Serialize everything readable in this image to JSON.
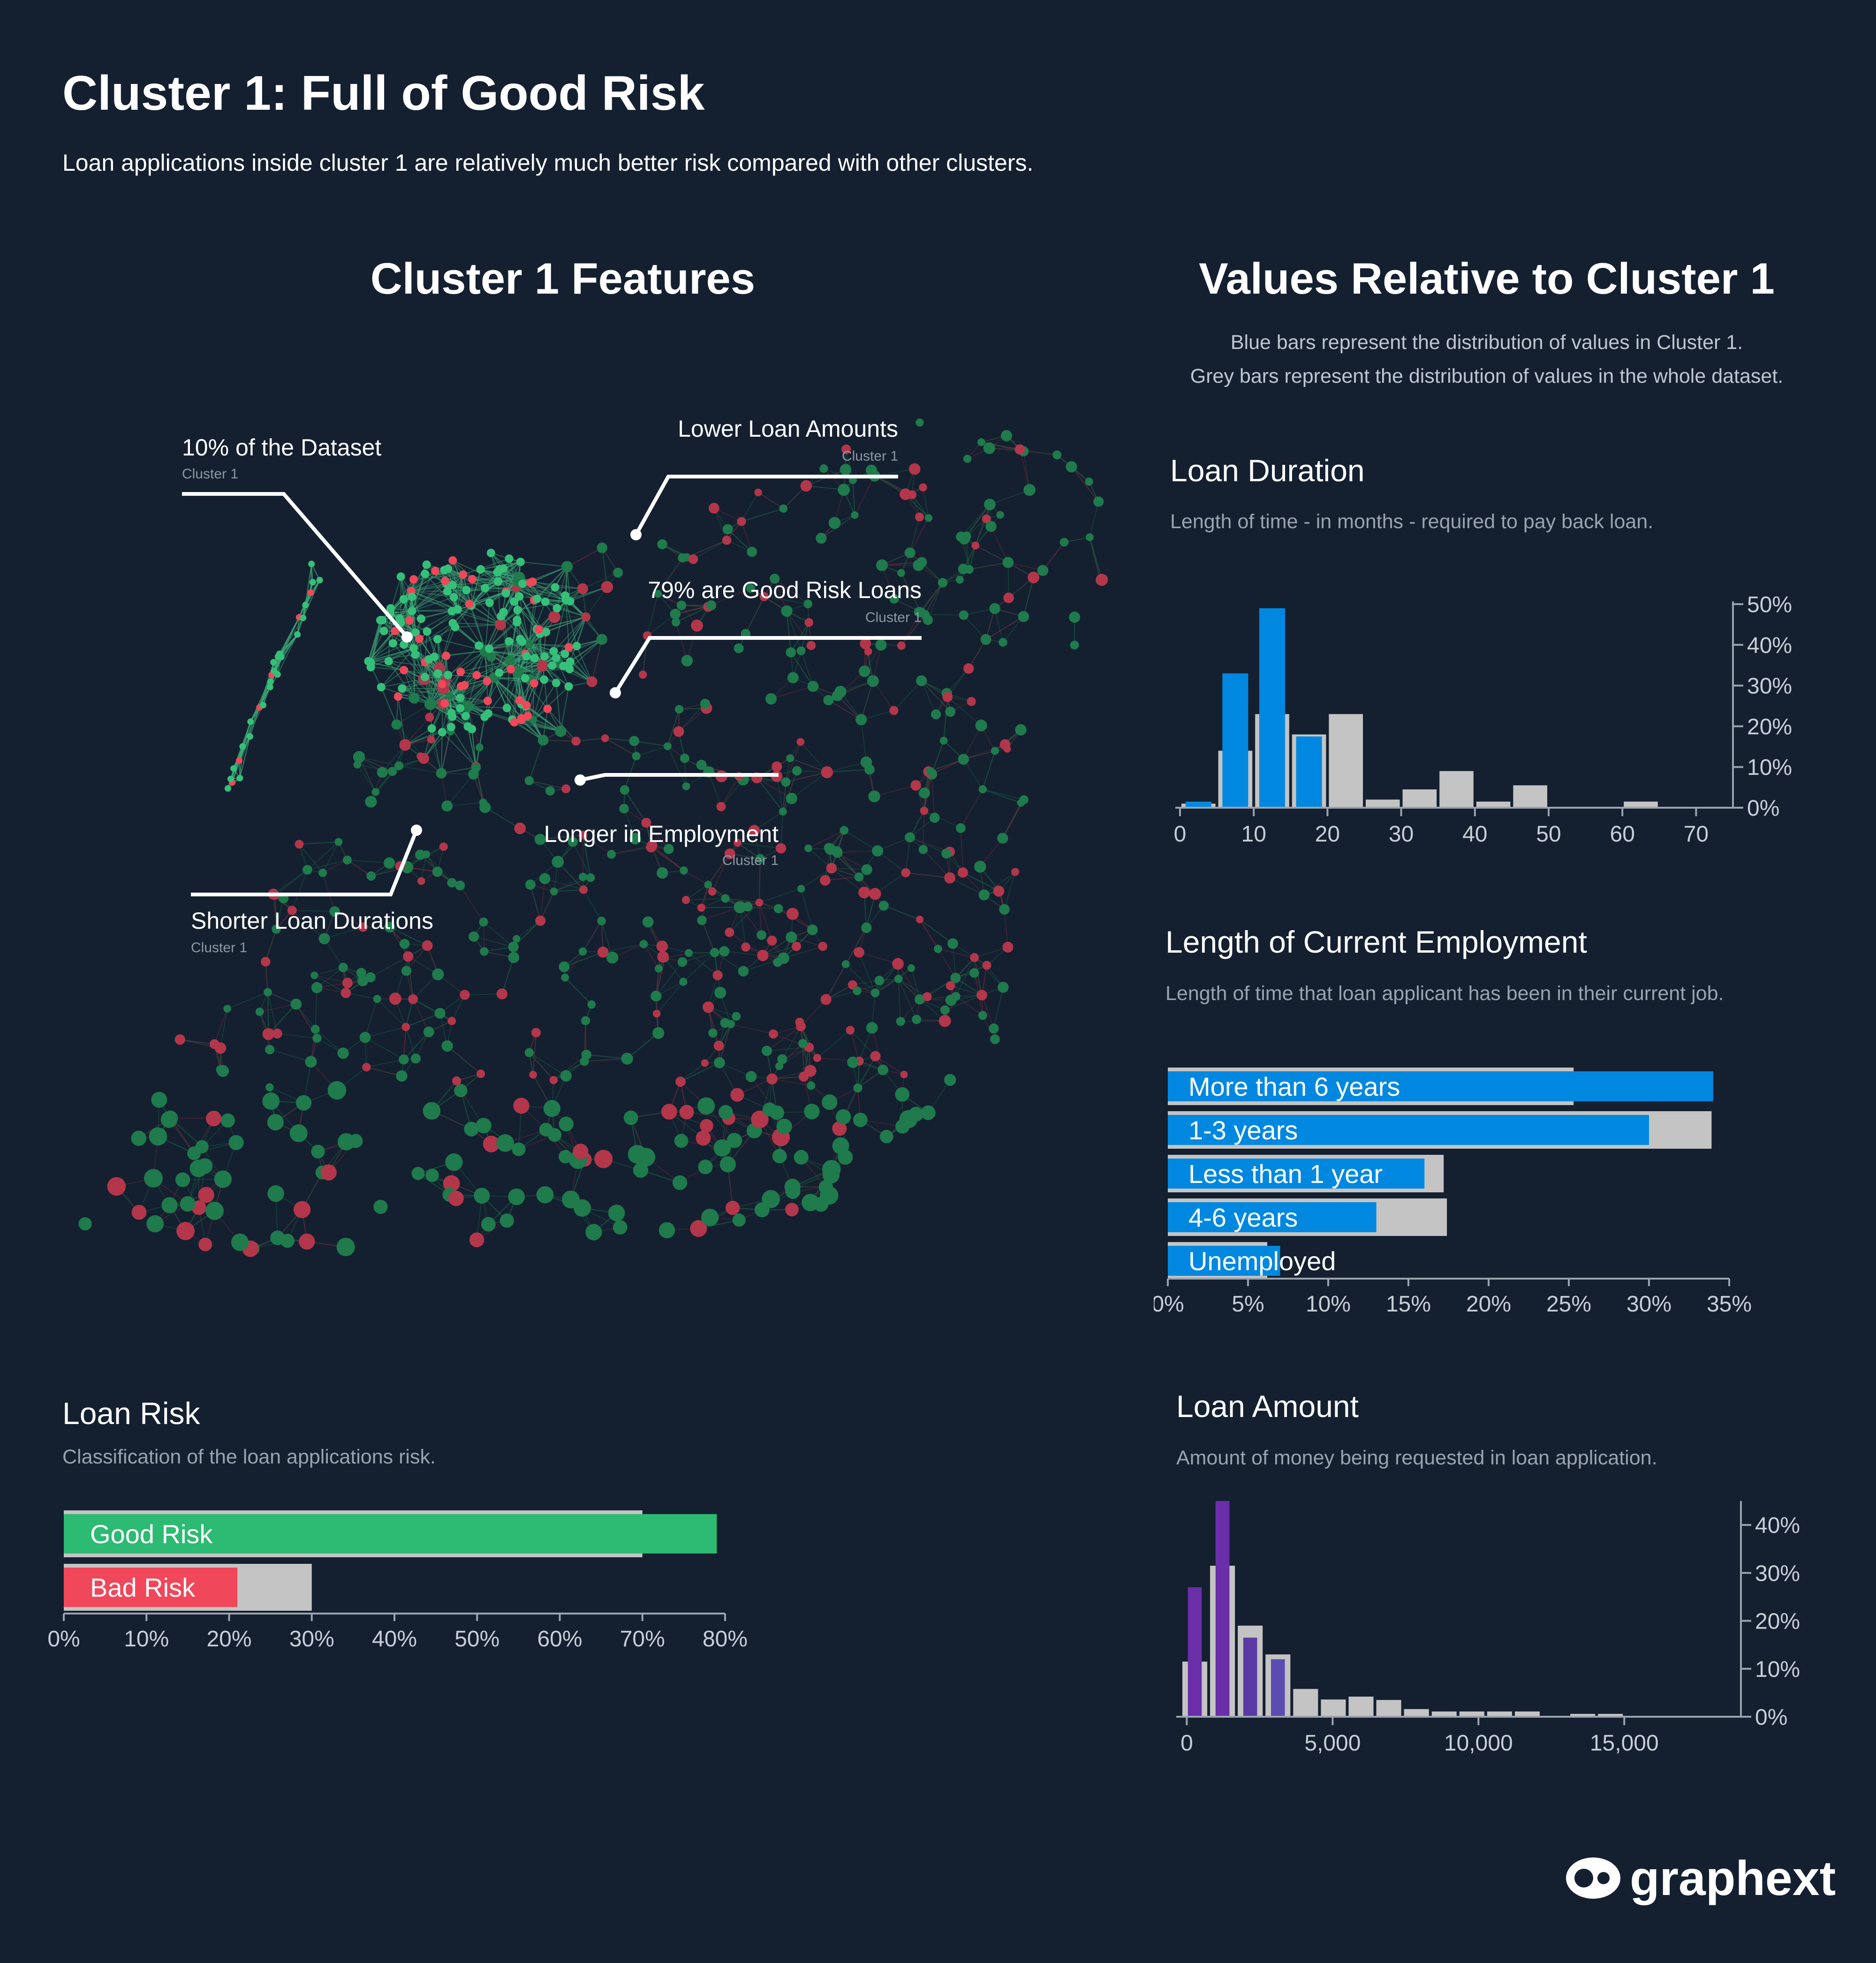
{
  "header": {
    "title": "Cluster 1: Full of Good Risk",
    "subtitle": "Loan applications inside cluster 1 are relatively much better risk compared with other clusters."
  },
  "left_section": {
    "title": "Cluster 1 Features",
    "annotations": [
      {
        "title": "10% of the Dataset",
        "sub": "Cluster 1"
      },
      {
        "title": "Lower Loan Amounts",
        "sub": "Cluster 1"
      },
      {
        "title": "79% are Good Risk Loans",
        "sub": "Cluster 1"
      },
      {
        "title": "Longer in Employment",
        "sub": "Cluster 1"
      },
      {
        "title": "Shorter Loan Durations",
        "sub": "Cluster 1"
      }
    ]
  },
  "right_section": {
    "title": "Values Relative to Cluster 1",
    "note_line1": "Blue bars represent the distribution of values in Cluster 1.",
    "note_line2": "Grey bars represent the distribution of values in the whole dataset."
  },
  "colors": {
    "background": "#142030",
    "cluster_blue": "#0088e0",
    "grey_bar": "#c4c4c4",
    "good_green": "#2dba72",
    "bad_red": "#f0475a",
    "purple_dark": "#6a2ea8",
    "purple_mid": "#5b3aa6",
    "purple_light": "#5a4cb0",
    "node_green": "#1f7a4c",
    "node_red": "#b3364a"
  },
  "chart_data": [
    {
      "id": "loan_duration",
      "type": "bar",
      "title": "Loan Duration",
      "description": "Length of time - in months - required to pay back loan.",
      "xlim": [
        0,
        75
      ],
      "x_ticks": [
        "0",
        "10",
        "20",
        "30",
        "40",
        "50",
        "60",
        "70"
      ],
      "x_tick_values": [
        0,
        10,
        20,
        30,
        40,
        50,
        60,
        70
      ],
      "ylim": [
        0,
        0.5
      ],
      "y_ticks": [
        "50%",
        "40%",
        "30%",
        "20%",
        "10%",
        "0%"
      ],
      "y_tick_values": [
        0.5,
        0.4,
        0.3,
        0.2,
        0.1,
        0
      ],
      "bin_width": 5,
      "whole_dataset": [
        {
          "x0": 0,
          "value": 0.01
        },
        {
          "x0": 5,
          "value": 0.14
        },
        {
          "x0": 10,
          "value": 0.23
        },
        {
          "x0": 15,
          "value": 0.18
        },
        {
          "x0": 20,
          "value": 0.23
        },
        {
          "x0": 25,
          "value": 0.02
        },
        {
          "x0": 30,
          "value": 0.045
        },
        {
          "x0": 35,
          "value": 0.09
        },
        {
          "x0": 40,
          "value": 0.015
        },
        {
          "x0": 45,
          "value": 0.055
        },
        {
          "x0": 60,
          "value": 0.015
        }
      ],
      "cluster_1": [
        {
          "x0": 0,
          "value": 0.015
        },
        {
          "x0": 5,
          "value": 0.33
        },
        {
          "x0": 10,
          "value": 0.49
        },
        {
          "x0": 15,
          "value": 0.175
        }
      ]
    },
    {
      "id": "employment_length",
      "type": "bar",
      "orientation": "horizontal",
      "title": "Length of Current Employment",
      "description": "Length of time that loan applicant has been in their current job.",
      "xlim": [
        0,
        0.35
      ],
      "x_ticks": [
        "0%",
        "5%",
        "10%",
        "15%",
        "20%",
        "25%",
        "30%",
        "35%"
      ],
      "x_tick_values": [
        0,
        0.05,
        0.1,
        0.15,
        0.2,
        0.25,
        0.3,
        0.35
      ],
      "categories": [
        "More than 6 years",
        "1-3 years",
        "Less than 1 year",
        "4-6 years",
        "Unemployed"
      ],
      "series": [
        {
          "name": "Whole dataset",
          "values": [
            0.253,
            0.339,
            0.172,
            0.174,
            0.062
          ]
        },
        {
          "name": "Cluster 1",
          "values": [
            0.34,
            0.3,
            0.16,
            0.13,
            0.07
          ]
        }
      ]
    },
    {
      "id": "loan_amount",
      "type": "bar",
      "title": "Loan Amount",
      "description": "Amount of money being requested in loan application.",
      "xlim": [
        -200,
        19000
      ],
      "x_ticks": [
        "0",
        "5,000",
        "10,000",
        "15,000"
      ],
      "x_tick_values": [
        0,
        5000,
        10000,
        15000
      ],
      "ylim": [
        0,
        0.45
      ],
      "y_ticks": [
        "40%",
        "30%",
        "20%",
        "10%",
        "0%"
      ],
      "y_tick_values": [
        0.4,
        0.3,
        0.2,
        0.1,
        0
      ],
      "bin_width": 950,
      "whole_dataset": [
        {
          "x0": -200,
          "value": 0.115
        },
        {
          "x0": 750,
          "value": 0.315
        },
        {
          "x0": 1700,
          "value": 0.19
        },
        {
          "x0": 2650,
          "value": 0.13
        },
        {
          "x0": 3600,
          "value": 0.058
        },
        {
          "x0": 4550,
          "value": 0.036
        },
        {
          "x0": 5500,
          "value": 0.042
        },
        {
          "x0": 6450,
          "value": 0.035
        },
        {
          "x0": 7400,
          "value": 0.016
        },
        {
          "x0": 8350,
          "value": 0.011
        },
        {
          "x0": 9300,
          "value": 0.011
        },
        {
          "x0": 10250,
          "value": 0.011
        },
        {
          "x0": 11200,
          "value": 0.011
        },
        {
          "x0": 13100,
          "value": 0.006
        },
        {
          "x0": 14050,
          "value": 0.006
        }
      ],
      "cluster_1": [
        {
          "x0": -200,
          "value": 0.27,
          "color": "#6a2ea8"
        },
        {
          "x0": 750,
          "value": 0.45,
          "color": "#6a2ea8"
        },
        {
          "x0": 1700,
          "value": 0.165,
          "color": "#5b3aa6"
        },
        {
          "x0": 2650,
          "value": 0.12,
          "color": "#5a4cb0"
        }
      ]
    },
    {
      "id": "loan_risk",
      "type": "bar",
      "orientation": "horizontal",
      "title": "Loan Risk",
      "description": "Classification of the loan applications risk.",
      "xlim": [
        0,
        0.8
      ],
      "x_ticks": [
        "0%",
        "10%",
        "20%",
        "30%",
        "40%",
        "50%",
        "60%",
        "70%",
        "80%"
      ],
      "x_tick_values": [
        0,
        0.1,
        0.2,
        0.3,
        0.4,
        0.5,
        0.6,
        0.7,
        0.8
      ],
      "categories": [
        "Good Risk",
        "Bad Risk"
      ],
      "series": [
        {
          "name": "Whole dataset",
          "values": [
            0.7,
            0.3
          ]
        },
        {
          "name": "Cluster 1",
          "values": [
            0.79,
            0.21
          ]
        }
      ]
    }
  ],
  "brand": {
    "name": "graphext"
  }
}
